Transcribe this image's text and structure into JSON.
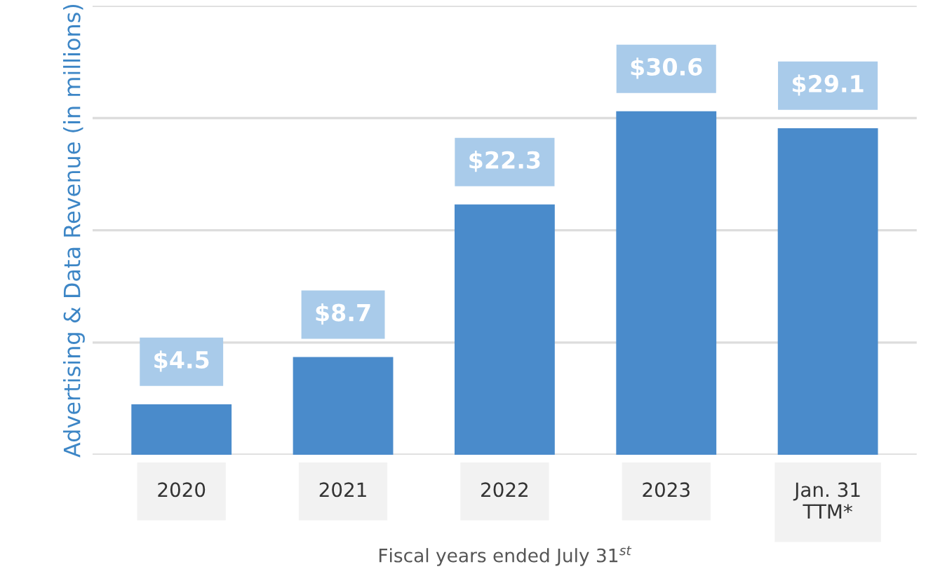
{
  "chart_data": {
    "type": "bar",
    "ylabel": "Advertising & Data Revenue (in millions)",
    "xlabel": "Fiscal years ended July 31$^{st}$",
    "categories": [
      "2020",
      "2021",
      "2022",
      "2023",
      "Jan. 31\nTTM*"
    ],
    "values": [
      4.5,
      8.7,
      22.3,
      30.6,
      29.1
    ],
    "value_labels": [
      "$4.5",
      "$8.7",
      "$22.3",
      "$30.6",
      "$29.1"
    ],
    "color": "#4a8bcb",
    "ylim": [
      0,
      40
    ],
    "yticks": [
      {
        "value": 0,
        "label": null
      },
      {
        "value": 10,
        "label": null
      },
      {
        "value": 20,
        "label": null
      },
      {
        "value": 30,
        "label": null
      },
      {
        "value": 40,
        "label": null
      }
    ],
    "tick_labels": "x",
    "grid": "y"
  }
}
